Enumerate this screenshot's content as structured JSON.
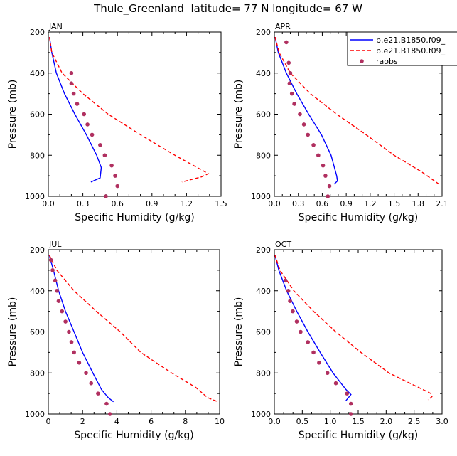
{
  "figure_title": "Thule_Greenland  latitude= 77 N longitude= 67 W",
  "legend": {
    "entries": [
      {
        "label": "b.e21.B1850.f09_",
        "style": "solid",
        "color": "#0000ff"
      },
      {
        "label": "b.e21.B1850.f09_",
        "style": "dashed",
        "color": "#ff0000"
      },
      {
        "label": "raobs",
        "style": "dots",
        "color": "#b03060"
      }
    ]
  },
  "colors": {
    "model1": "#0000ff",
    "model2": "#ff0000",
    "raobs": "#b03060"
  },
  "chart_data": [
    {
      "type": "line",
      "title": "JAN",
      "xlabel": "Specific Humidity (g/kg)",
      "ylabel": "Pressure (mb)",
      "xlim": [
        0,
        1.5
      ],
      "ylim": [
        200,
        1000
      ],
      "y_inverted": true,
      "xticks": [
        0.0,
        0.3,
        0.6,
        0.9,
        1.2,
        1.5
      ],
      "xtick_labels": [
        "0.0",
        "0.3",
        "0.6",
        "0.9",
        "1.2",
        "1.5"
      ],
      "yticks": [
        200,
        400,
        600,
        800,
        1000
      ],
      "ytick_labels": [
        "200",
        "400",
        "600",
        "800",
        "1000"
      ],
      "series": [
        {
          "name": "b.e21.B1850.f09_",
          "style": "solid",
          "points": [
            [
              0.01,
              225
            ],
            [
              0.03,
              300
            ],
            [
              0.07,
              400
            ],
            [
              0.14,
              500
            ],
            [
              0.23,
              600
            ],
            [
              0.33,
              700
            ],
            [
              0.42,
              800
            ],
            [
              0.46,
              860
            ],
            [
              0.45,
              910
            ],
            [
              0.37,
              930
            ]
          ]
        },
        {
          "name": "b.e21.B1850.f09_",
          "style": "dashed",
          "points": [
            [
              0.01,
              225
            ],
            [
              0.03,
              300
            ],
            [
              0.12,
              400
            ],
            [
              0.3,
              500
            ],
            [
              0.52,
              600
            ],
            [
              0.8,
              700
            ],
            [
              1.1,
              800
            ],
            [
              1.39,
              890
            ],
            [
              1.33,
              905
            ],
            [
              1.16,
              930
            ]
          ]
        },
        {
          "name": "raobs",
          "style": "dots",
          "points": [
            [
              0.2,
              400
            ],
            [
              0.2,
              450
            ],
            [
              0.22,
              500
            ],
            [
              0.25,
              550
            ],
            [
              0.31,
              600
            ],
            [
              0.34,
              650
            ],
            [
              0.38,
              700
            ],
            [
              0.45,
              750
            ],
            [
              0.49,
              800
            ],
            [
              0.55,
              850
            ],
            [
              0.58,
              900
            ],
            [
              0.6,
              950
            ],
            [
              0.5,
              1000
            ]
          ]
        }
      ]
    },
    {
      "type": "line",
      "title": "APR",
      "xlabel": "Specific Humidity (g/kg)",
      "ylabel": "Pressure (mb)",
      "xlim": [
        0,
        2.1
      ],
      "ylim": [
        200,
        1000
      ],
      "y_inverted": true,
      "xticks": [
        0.0,
        0.3,
        0.6,
        0.9,
        1.2,
        1.5,
        1.8,
        2.1
      ],
      "xtick_labels": [
        "0.0",
        "0.3",
        "0.6",
        "0.9",
        "1.2",
        "1.5",
        "1.8",
        "2.1"
      ],
      "yticks": [
        200,
        400,
        600,
        800,
        1000
      ],
      "ytick_labels": [
        "200",
        "400",
        "600",
        "800",
        "1000"
      ],
      "series": [
        {
          "name": "b.e21.B1850.f09_",
          "style": "solid",
          "points": [
            [
              0.01,
              225
            ],
            [
              0.05,
              300
            ],
            [
              0.15,
              400
            ],
            [
              0.28,
              500
            ],
            [
              0.43,
              600
            ],
            [
              0.59,
              700
            ],
            [
              0.71,
              800
            ],
            [
              0.78,
              900
            ],
            [
              0.79,
              925
            ],
            [
              0.75,
              940
            ]
          ]
        },
        {
          "name": "b.e21.B1850.f09_",
          "style": "dashed",
          "points": [
            [
              0.01,
              225
            ],
            [
              0.06,
              300
            ],
            [
              0.2,
              400
            ],
            [
              0.45,
              500
            ],
            [
              0.78,
              600
            ],
            [
              1.15,
              700
            ],
            [
              1.5,
              800
            ],
            [
              1.84,
              880
            ],
            [
              1.95,
              910
            ],
            [
              2.06,
              940
            ]
          ]
        },
        {
          "name": "raobs",
          "style": "dots",
          "points": [
            [
              0.15,
              250
            ],
            [
              0.18,
              350
            ],
            [
              0.2,
              400
            ],
            [
              0.19,
              450
            ],
            [
              0.22,
              500
            ],
            [
              0.25,
              550
            ],
            [
              0.32,
              600
            ],
            [
              0.37,
              650
            ],
            [
              0.42,
              700
            ],
            [
              0.49,
              750
            ],
            [
              0.55,
              800
            ],
            [
              0.61,
              850
            ],
            [
              0.64,
              900
            ],
            [
              0.69,
              950
            ],
            [
              0.67,
              1000
            ]
          ]
        }
      ]
    },
    {
      "type": "line",
      "title": "JUL",
      "xlabel": "Specific Humidity (g/kg)",
      "ylabel": "Pressure (mb)",
      "xlim": [
        0,
        10
      ],
      "ylim": [
        200,
        1000
      ],
      "y_inverted": true,
      "xticks": [
        0,
        2,
        4,
        6,
        8,
        10
      ],
      "xtick_labels": [
        "0",
        "2",
        "4",
        "6",
        "8",
        "10"
      ],
      "yticks": [
        200,
        400,
        600,
        800,
        1000
      ],
      "ytick_labels": [
        "200",
        "400",
        "600",
        "800",
        "1000"
      ],
      "series": [
        {
          "name": "b.e21.B1850.f09_",
          "style": "solid",
          "points": [
            [
              0.05,
              225
            ],
            [
              0.3,
              300
            ],
            [
              0.6,
              400
            ],
            [
              1.0,
              500
            ],
            [
              1.5,
              600
            ],
            [
              2.0,
              700
            ],
            [
              2.6,
              800
            ],
            [
              3.1,
              880
            ],
            [
              3.5,
              920
            ],
            [
              3.8,
              940
            ]
          ]
        },
        {
          "name": "b.e21.B1850.f09_",
          "style": "dashed",
          "points": [
            [
              0.05,
              225
            ],
            [
              0.5,
              300
            ],
            [
              1.5,
              400
            ],
            [
              2.8,
              500
            ],
            [
              4.2,
              600
            ],
            [
              5.4,
              700
            ],
            [
              7.2,
              800
            ],
            [
              8.6,
              870
            ],
            [
              9.3,
              920
            ],
            [
              9.9,
              940
            ]
          ]
        },
        {
          "name": "raobs",
          "style": "dots",
          "points": [
            [
              0.15,
              250
            ],
            [
              0.25,
              300
            ],
            [
              0.4,
              350
            ],
            [
              0.5,
              400
            ],
            [
              0.6,
              450
            ],
            [
              0.8,
              500
            ],
            [
              1.0,
              550
            ],
            [
              1.2,
              600
            ],
            [
              1.35,
              650
            ],
            [
              1.5,
              700
            ],
            [
              1.8,
              750
            ],
            [
              2.2,
              800
            ],
            [
              2.5,
              850
            ],
            [
              2.9,
              900
            ],
            [
              3.4,
              950
            ],
            [
              3.6,
              1000
            ]
          ]
        }
      ]
    },
    {
      "type": "line",
      "title": "OCT",
      "xlabel": "Specific Humidity (g/kg)",
      "ylabel": "Pressure (mb)",
      "xlim": [
        0,
        3.0
      ],
      "ylim": [
        200,
        1000
      ],
      "y_inverted": true,
      "xticks": [
        0.0,
        0.5,
        1.0,
        1.5,
        2.0,
        2.5,
        3.0
      ],
      "xtick_labels": [
        "0.0",
        "0.5",
        "1.0",
        "1.5",
        "2.0",
        "2.5",
        "3.0"
      ],
      "yticks": [
        200,
        400,
        600,
        800,
        1000
      ],
      "ytick_labels": [
        "200",
        "400",
        "600",
        "800",
        "1000"
      ],
      "series": [
        {
          "name": "b.e21.B1850.f09_",
          "style": "solid",
          "points": [
            [
              0.01,
              225
            ],
            [
              0.08,
              300
            ],
            [
              0.22,
              400
            ],
            [
              0.4,
              500
            ],
            [
              0.6,
              600
            ],
            [
              0.82,
              700
            ],
            [
              1.05,
              800
            ],
            [
              1.28,
              880
            ],
            [
              1.37,
              905
            ],
            [
              1.28,
              935
            ]
          ]
        },
        {
          "name": "b.e21.B1850.f09_",
          "style": "dashed",
          "points": [
            [
              0.01,
              225
            ],
            [
              0.1,
              300
            ],
            [
              0.35,
              400
            ],
            [
              0.7,
              500
            ],
            [
              1.1,
              600
            ],
            [
              1.55,
              700
            ],
            [
              2.05,
              800
            ],
            [
              2.5,
              860
            ],
            [
              2.8,
              900
            ],
            [
              2.82,
              915
            ],
            [
              2.75,
              930
            ]
          ]
        },
        {
          "name": "raobs",
          "style": "dots",
          "points": [
            [
              0.2,
              350
            ],
            [
              0.25,
              400
            ],
            [
              0.28,
              450
            ],
            [
              0.33,
              500
            ],
            [
              0.4,
              550
            ],
            [
              0.47,
              600
            ],
            [
              0.6,
              650
            ],
            [
              0.7,
              700
            ],
            [
              0.8,
              750
            ],
            [
              0.95,
              800
            ],
            [
              1.1,
              850
            ],
            [
              1.3,
              900
            ],
            [
              1.37,
              950
            ],
            [
              1.37,
              1000
            ]
          ]
        }
      ]
    }
  ]
}
